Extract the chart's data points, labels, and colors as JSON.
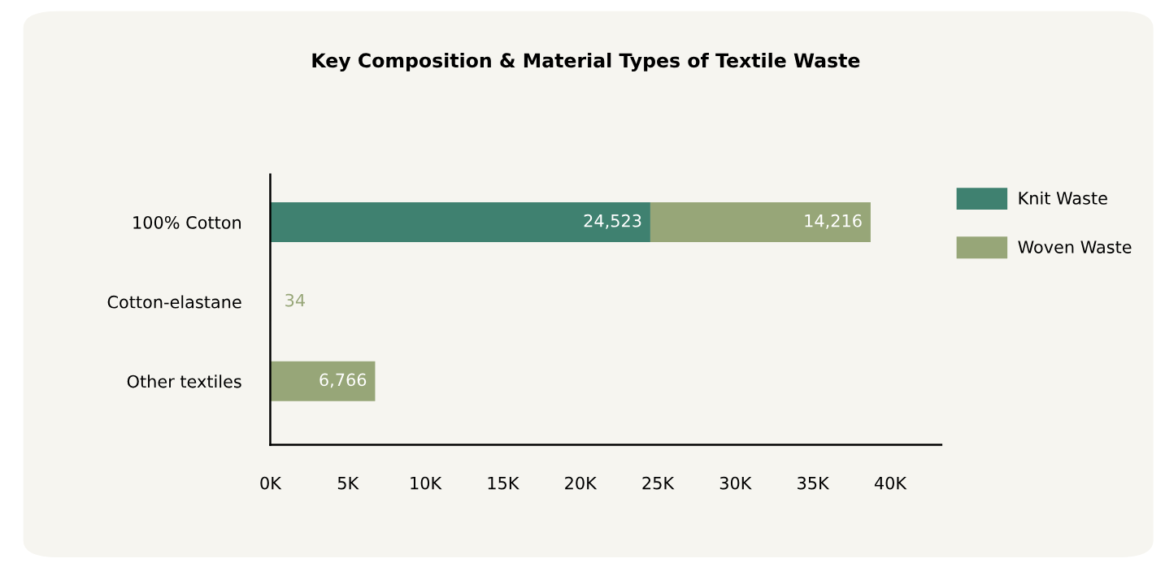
{
  "chart_data": {
    "type": "bar",
    "orientation": "horizontal",
    "stacked": true,
    "title": "Key Composition & Material Types of Textile Waste",
    "categories": [
      "100% Cotton",
      "Cotton-elastane",
      "Other textiles"
    ],
    "series": [
      {
        "name": "Knit Waste",
        "color": "#3f8170",
        "values": [
          24523,
          null,
          null
        ],
        "value_labels": [
          "24,523",
          null,
          null
        ]
      },
      {
        "name": "Woven Waste",
        "color": "#97a678",
        "values": [
          14216,
          34,
          6766
        ],
        "value_labels": [
          "14,216",
          "34",
          "6,766"
        ]
      }
    ],
    "xlim": [
      0,
      43300
    ],
    "xticks": [
      {
        "value": 0,
        "label": "0K"
      },
      {
        "value": 5000,
        "label": "5K"
      },
      {
        "value": 10000,
        "label": "10K"
      },
      {
        "value": 15000,
        "label": "15K"
      },
      {
        "value": 20000,
        "label": "20K"
      },
      {
        "value": 25000,
        "label": "25K"
      },
      {
        "value": 30000,
        "label": "30K"
      },
      {
        "value": 35000,
        "label": "35K"
      },
      {
        "value": 40000,
        "label": "40K"
      }
    ],
    "grid": false,
    "legend": "right"
  }
}
